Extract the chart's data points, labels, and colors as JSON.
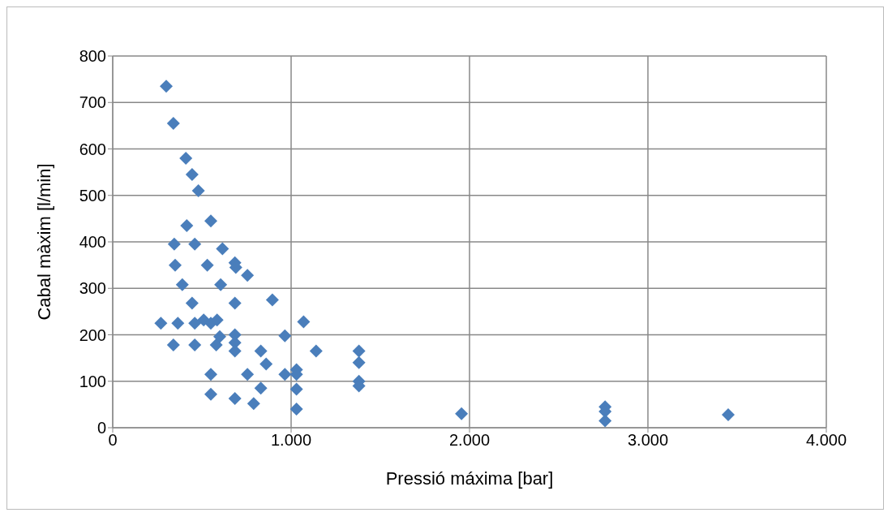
{
  "chart_data": {
    "type": "scatter",
    "xlabel": "Pressió máxima [bar]",
    "ylabel": "Cabal màxim [l/min]",
    "xlim": [
      0,
      4000
    ],
    "xticks": [
      0,
      {
        "value": 1000,
        "label": "1.000"
      },
      {
        "value": 2000,
        "label": "2.000"
      },
      {
        "value": 3000,
        "label": "3.000"
      },
      {
        "value": 4000,
        "label": "4.000"
      }
    ],
    "ylim": [
      0,
      800
    ],
    "yticks": [
      0,
      100,
      200,
      300,
      400,
      500,
      600,
      700,
      800
    ],
    "grid": true,
    "marker": "diamond",
    "series": [
      {
        "color": "#4a7ebb",
        "x": [
          300,
          340,
          410,
          445,
          480,
          550,
          415,
          345,
          460,
          615,
          350,
          530,
          685,
          690,
          755,
          390,
          605,
          445,
          685,
          895,
          270,
          365,
          460,
          510,
          550,
          585,
          1070,
          600,
          685,
          965,
          340,
          460,
          580,
          685,
          685,
          1140,
          830,
          860,
          550,
          755,
          965,
          1030,
          1030,
          830,
          1030,
          550,
          685,
          790,
          1030,
          1380,
          1380,
          1380,
          1380,
          1955,
          2760,
          2760,
          2760,
          3450
        ],
        "values": [
          735,
          655,
          580,
          545,
          510,
          445,
          435,
          395,
          395,
          385,
          350,
          350,
          355,
          345,
          328,
          308,
          308,
          268,
          268,
          275,
          225,
          225,
          225,
          232,
          225,
          232,
          228,
          196,
          200,
          198,
          178,
          178,
          178,
          183,
          165,
          165,
          165,
          137,
          115,
          115,
          115,
          125,
          115,
          85,
          83,
          72,
          63,
          52,
          40,
          165,
          140,
          100,
          90,
          30,
          45,
          35,
          15,
          28
        ]
      }
    ]
  }
}
